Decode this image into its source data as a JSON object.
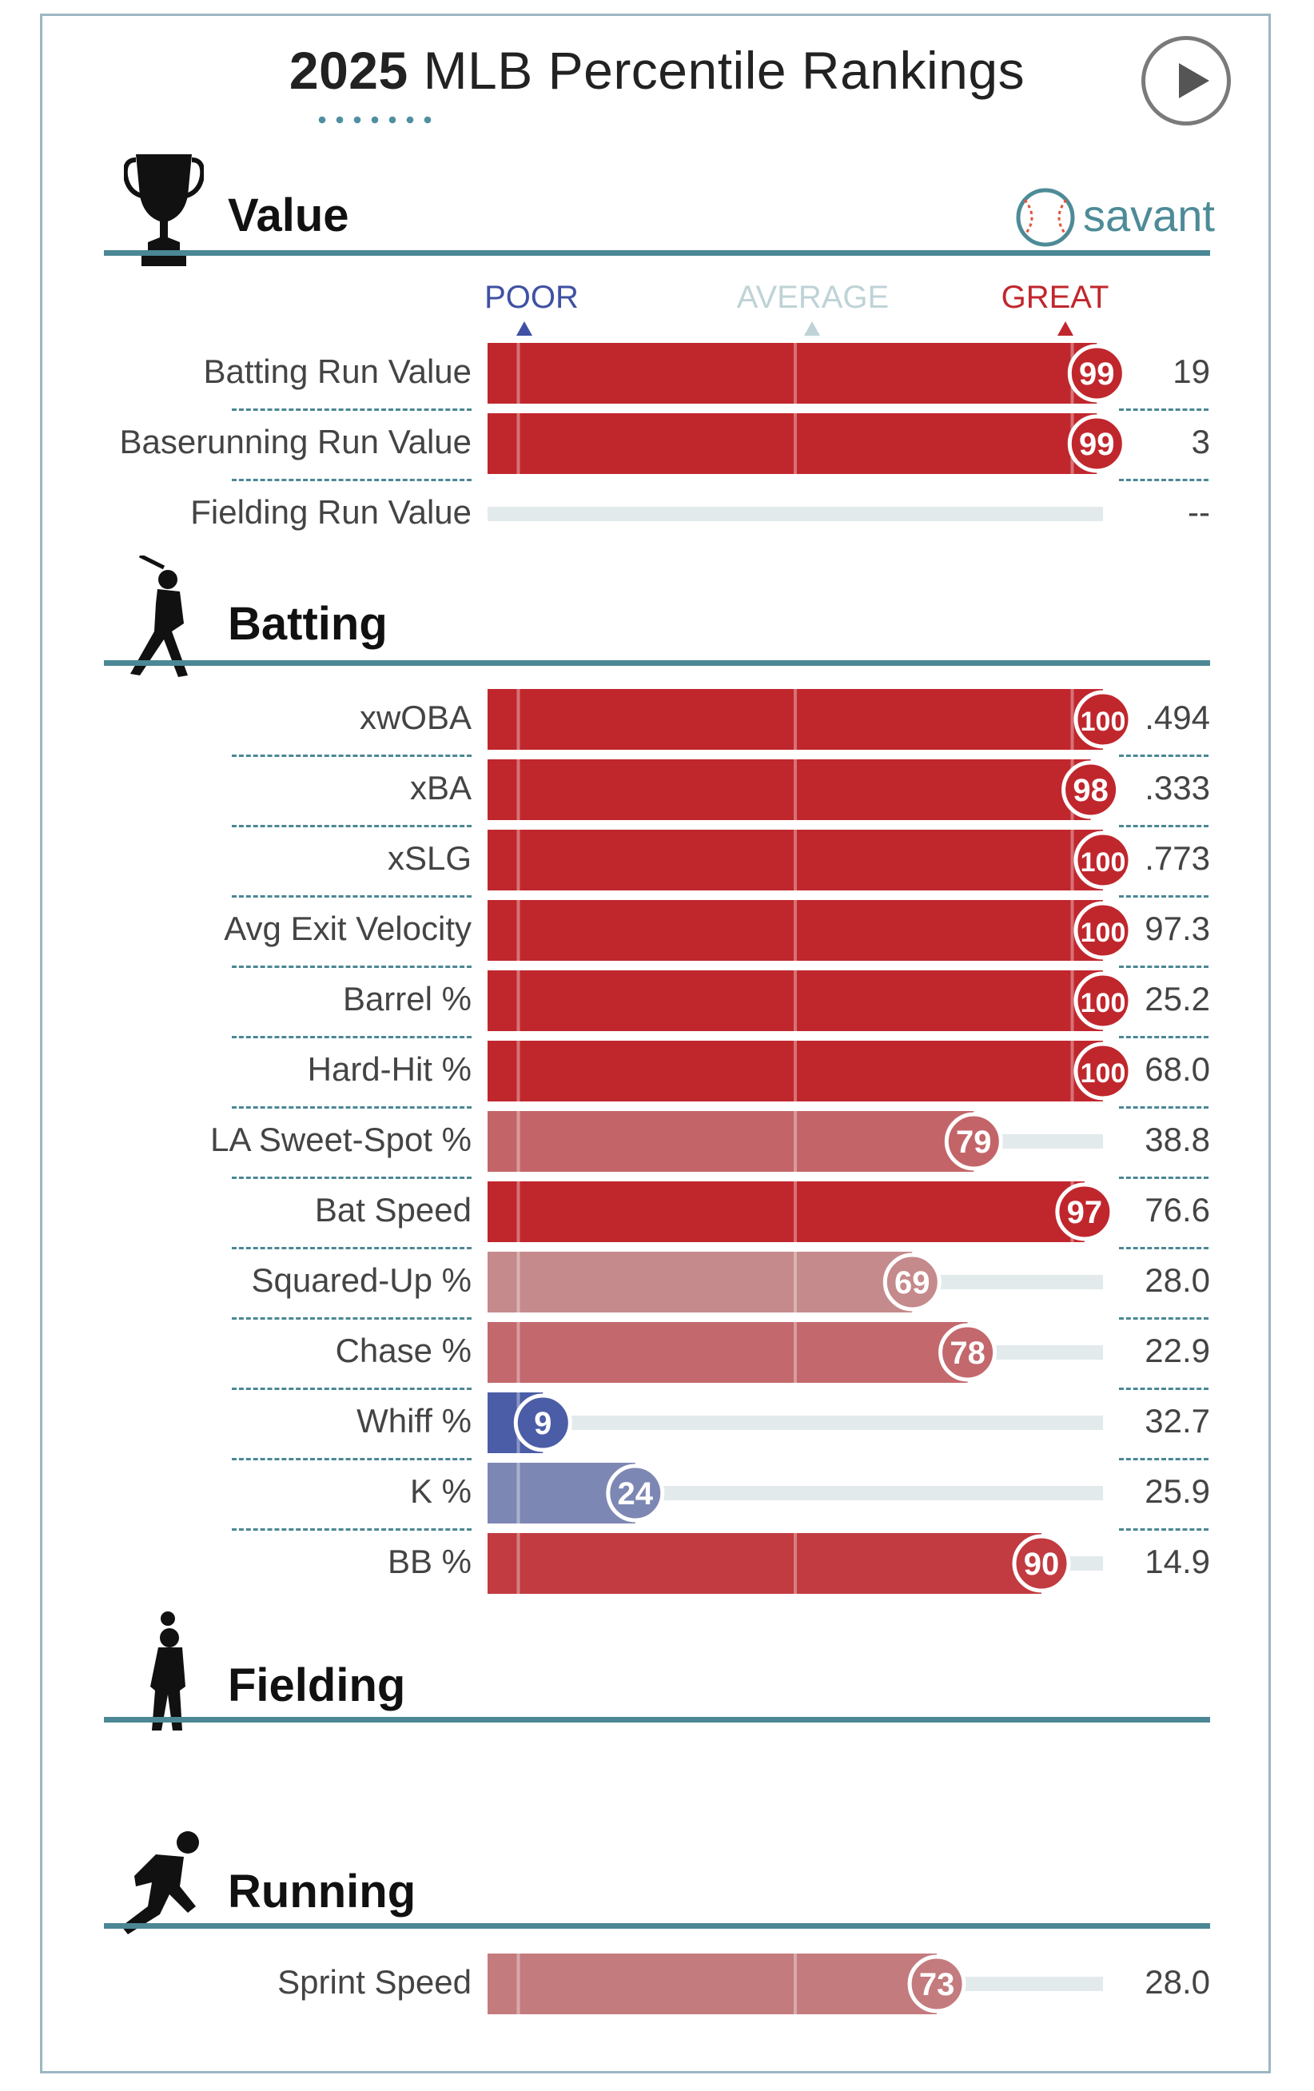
{
  "title": {
    "year": "2025",
    "rest": "MLB Percentile Rankings"
  },
  "brand": {
    "name": "savant"
  },
  "legend": {
    "poor": "POOR",
    "average": "AVERAGE",
    "great": "GREAT",
    "poor_color": "#3f51a3",
    "average_color": "#bfd3d7",
    "great_color": "#c0272d"
  },
  "sections": {
    "value": "Value",
    "batting": "Batting",
    "fielding": "Fielding",
    "running": "Running"
  },
  "chart_data": {
    "type": "bar",
    "title": "2025 MLB Percentile Rankings",
    "xlim": [
      0,
      100
    ],
    "groups": [
      {
        "section": "Value",
        "rows": [
          {
            "label": "Batting Run Value",
            "percentile": 99,
            "value": "19"
          },
          {
            "label": "Baserunning Run Value",
            "percentile": 99,
            "value": "3"
          },
          {
            "label": "Fielding Run Value",
            "percentile": null,
            "value": "--"
          }
        ]
      },
      {
        "section": "Batting",
        "rows": [
          {
            "label": "xwOBA",
            "percentile": 100,
            "value": ".494"
          },
          {
            "label": "xBA",
            "percentile": 98,
            "value": ".333"
          },
          {
            "label": "xSLG",
            "percentile": 100,
            "value": ".773"
          },
          {
            "label": "Avg Exit Velocity",
            "percentile": 100,
            "value": "97.3"
          },
          {
            "label": "Barrel %",
            "percentile": 100,
            "value": "25.2"
          },
          {
            "label": "Hard-Hit %",
            "percentile": 100,
            "value": "68.0"
          },
          {
            "label": "LA Sweet-Spot %",
            "percentile": 79,
            "value": "38.8"
          },
          {
            "label": "Bat Speed",
            "percentile": 97,
            "value": "76.6"
          },
          {
            "label": "Squared-Up %",
            "percentile": 69,
            "value": "28.0"
          },
          {
            "label": "Chase %",
            "percentile": 78,
            "value": "22.9"
          },
          {
            "label": "Whiff %",
            "percentile": 9,
            "value": "32.7"
          },
          {
            "label": "K %",
            "percentile": 24,
            "value": "25.9"
          },
          {
            "label": "BB %",
            "percentile": 90,
            "value": "14.9"
          }
        ]
      },
      {
        "section": "Fielding",
        "rows": []
      },
      {
        "section": "Running",
        "rows": [
          {
            "label": "Sprint Speed",
            "percentile": 73,
            "value": "28.0"
          }
        ]
      }
    ]
  }
}
